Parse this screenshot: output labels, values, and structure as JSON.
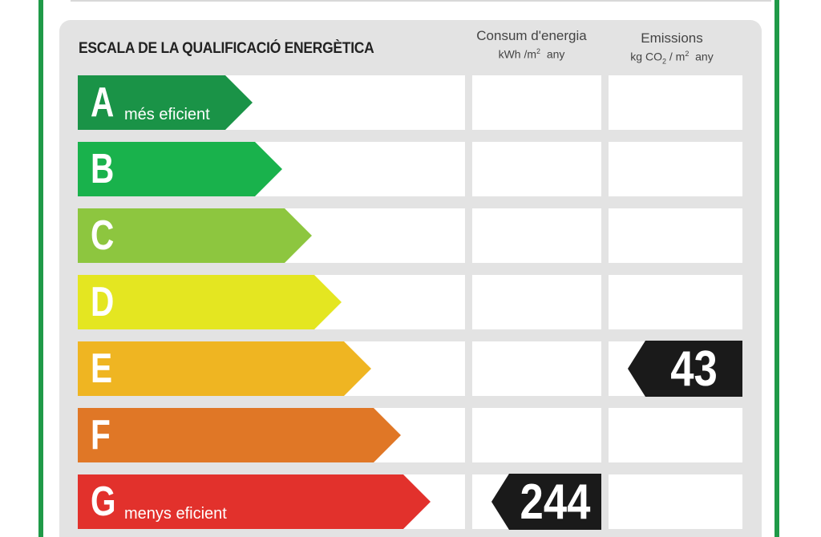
{
  "title": "ESCALA DE LA QUALIFICACIÓ ENERGÈTICA",
  "columns": {
    "energy": {
      "label": "Consum d'energia",
      "unit_main": "kWh /m",
      "unit_sup": "2",
      "unit_tail": "any"
    },
    "emissions": {
      "label": "Emissions",
      "unit_main": "kg CO",
      "unit_sub": "2",
      "unit_mid": " / m",
      "unit_sup": "2",
      "unit_tail": "any"
    }
  },
  "ratings": [
    {
      "letter": "A",
      "sublabel": "més eficient",
      "color": "#1a9347"
    },
    {
      "letter": "B",
      "sublabel": "",
      "color": "#19b24c"
    },
    {
      "letter": "C",
      "sublabel": "",
      "color": "#8dc63f"
    },
    {
      "letter": "D",
      "sublabel": "",
      "color": "#e4e621"
    },
    {
      "letter": "E",
      "sublabel": "",
      "color": "#efb522"
    },
    {
      "letter": "F",
      "sublabel": "",
      "color": "#e07726"
    },
    {
      "letter": "G",
      "sublabel": "menys eficient",
      "color": "#e2312c"
    }
  ],
  "energy_consumption": {
    "value": "244",
    "rating": "G"
  },
  "emissions": {
    "value": "43",
    "rating": "E"
  },
  "badge_color": "#1a1a1a",
  "frame_color": "#1f9a48"
}
